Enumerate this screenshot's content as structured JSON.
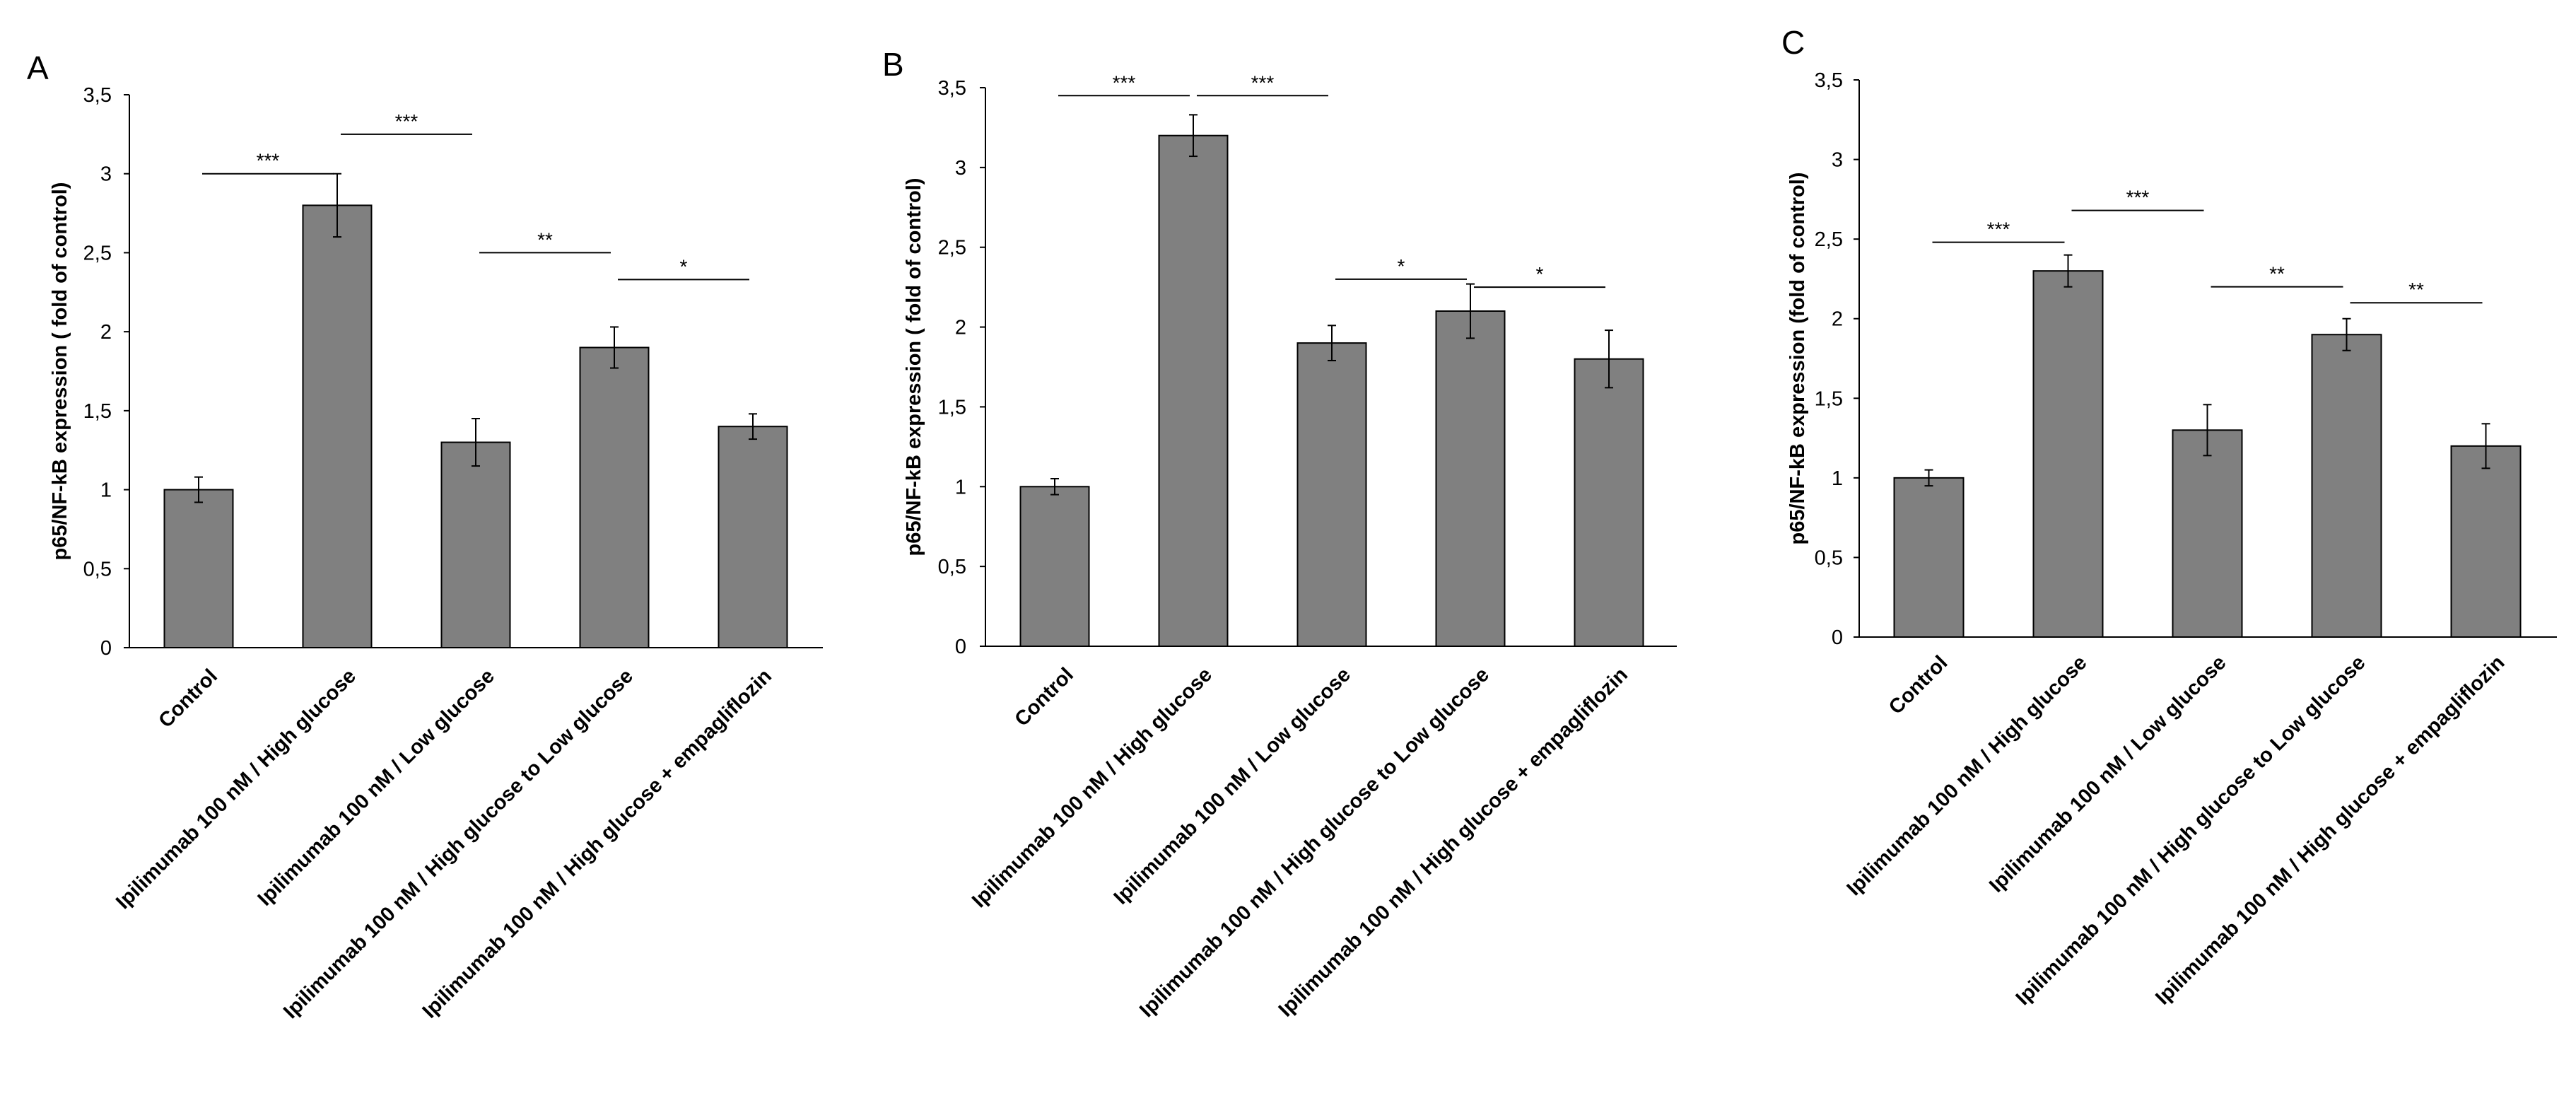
{
  "figure": {
    "colors": {
      "bar": "#808080",
      "bar_edge": "#000000",
      "axis": "#000000",
      "background": "#ffffff"
    }
  },
  "chart_data": [
    {
      "panel": "A",
      "type": "bar",
      "ylabel": "p65/NF-kB expression ( fold of control)",
      "ylim": [
        0,
        3.5
      ],
      "yticks": [
        "0",
        "0,5",
        "1",
        "1,5",
        "2",
        "2,5",
        "3",
        "3,5"
      ],
      "categories": [
        "Control",
        "Ipilimumab 100 nM / High glucose",
        "Ipilimumab 100 nM / Low glucose",
        "Ipilimumab 100 nM / High glucose to Low glucose",
        "Ipilimumab 100 nM / High glucose + empagliflozin"
      ],
      "values": [
        1.0,
        2.8,
        1.3,
        1.9,
        1.4
      ],
      "errors": [
        0.08,
        0.2,
        0.15,
        0.13,
        0.08
      ],
      "significance": [
        {
          "from": 0,
          "to": 1,
          "level": 3.0,
          "label": "***"
        },
        {
          "from": 1,
          "to": 2,
          "level": 3.25,
          "label": "***"
        },
        {
          "from": 2,
          "to": 3,
          "level": 2.5,
          "label": "**"
        },
        {
          "from": 3,
          "to": 4,
          "level": 2.33,
          "label": "*"
        }
      ]
    },
    {
      "panel": "B",
      "type": "bar",
      "ylabel": "p65/NF-kB expression ( fold of control)",
      "ylim": [
        0,
        3.5
      ],
      "yticks": [
        "0",
        "0,5",
        "1",
        "1,5",
        "2",
        "2,5",
        "3",
        "3,5"
      ],
      "categories": [
        "Control",
        "Ipilimumab 100 nM / High glucose",
        "Ipilimumab 100 nM / Low glucose",
        "Ipilimumab 100 nM / High glucose to Low glucose",
        "Ipilimumab 100 nM / High glucose + empagliflozin"
      ],
      "values": [
        1.0,
        3.2,
        1.9,
        2.1,
        1.8
      ],
      "errors": [
        0.05,
        0.13,
        0.11,
        0.17,
        0.18
      ],
      "significance": [
        {
          "from": 0,
          "to": 1,
          "level": 3.45,
          "label": "***"
        },
        {
          "from": 1,
          "to": 2,
          "level": 3.45,
          "label": "***"
        },
        {
          "from": 2,
          "to": 3,
          "level": 2.3,
          "label": "*"
        },
        {
          "from": 3,
          "to": 4,
          "level": 2.25,
          "label": "*"
        }
      ]
    },
    {
      "panel": "C",
      "type": "bar",
      "ylabel": "p65/NF-kB expression (fold of control)",
      "ylim": [
        0,
        3.5
      ],
      "yticks": [
        "0",
        "0,5",
        "1",
        "1,5",
        "2",
        "2,5",
        "3",
        "3,5"
      ],
      "categories": [
        "Control",
        "Ipilimumab 100 nM / High glucose",
        "Ipilimumab 100 nM / Low glucose",
        "Ipilimumab 100 nM / High glucose to Low glucose",
        "Ipilimumab 100 nM / High glucose + empagliflozin"
      ],
      "values": [
        1.0,
        2.3,
        1.3,
        1.9,
        1.2
      ],
      "errors": [
        0.05,
        0.1,
        0.16,
        0.1,
        0.14
      ],
      "significance": [
        {
          "from": 0,
          "to": 1,
          "level": 2.48,
          "label": "***"
        },
        {
          "from": 1,
          "to": 2,
          "level": 2.68,
          "label": "***"
        },
        {
          "from": 2,
          "to": 3,
          "level": 2.2,
          "label": "**"
        },
        {
          "from": 3,
          "to": 4,
          "level": 2.1,
          "label": "**"
        }
      ]
    }
  ]
}
